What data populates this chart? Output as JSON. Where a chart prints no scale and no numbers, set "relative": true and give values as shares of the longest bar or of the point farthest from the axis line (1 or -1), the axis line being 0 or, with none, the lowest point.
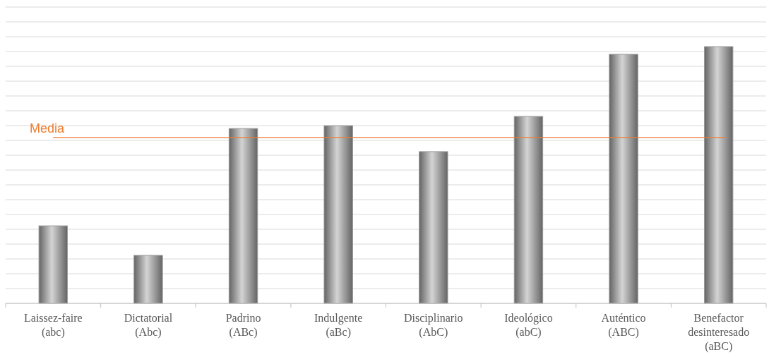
{
  "chart_data": {
    "type": "bar",
    "relative": true,
    "categories": [
      "Laissez-faire\n(abc)",
      "Dictatorial\n(Abc)",
      "Padrino\n(ABc)",
      "Indulgente\n(aBc)",
      "Disciplinario\n(AbC)",
      "Ideológico\n(abC)",
      "Auténtico\n(ABC)",
      "Benefactor\ndesinteresado\n(aBC)"
    ],
    "values": [
      0.302,
      0.187,
      0.681,
      0.692,
      0.591,
      0.728,
      0.97,
      1
    ],
    "color": "#9a9a9a",
    "grid": "y",
    "ref_lines": [
      {
        "axis": "y",
        "value": 0.646,
        "label": "Media",
        "color": "#ed7d31"
      }
    ]
  }
}
